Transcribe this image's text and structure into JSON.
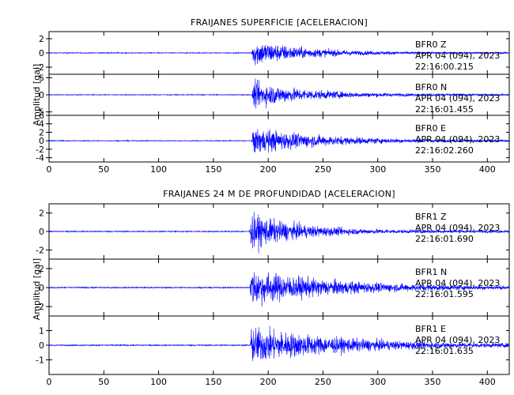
{
  "chart_data": [
    {
      "type": "line",
      "title": "FRAIJANES SUPERFICIE [ACELERACION]",
      "ylabel": "Amplitud [gal]",
      "xlabel": "",
      "xlim": [
        0,
        420
      ],
      "xticks": [
        0,
        50,
        100,
        150,
        200,
        250,
        300,
        350,
        400
      ],
      "colors": {
        "trace": "#0000ff",
        "axis": "#000000"
      },
      "traces": [
        {
          "station": "BFR0",
          "component": "Z",
          "date": "APR 04 (094), 2023",
          "time": "22:16:00.215",
          "ylim": [
            -3,
            3
          ],
          "yticks": [
            -2,
            0,
            2
          ],
          "onset_s": 185,
          "peak_gal": 3.0,
          "decay_s": 45
        },
        {
          "station": "BFR0",
          "component": "N",
          "date": "APR 04 (094), 2023",
          "time": "22:16:01.455",
          "ylim": [
            -6,
            6
          ],
          "yticks": [
            -5,
            0,
            5
          ],
          "onset_s": 185,
          "peak_gal": 6.0,
          "decay_s": 50
        },
        {
          "station": "BFR0",
          "component": "E",
          "date": "APR 04 (094), 2023",
          "time": "22:16:02.260",
          "ylim": [
            -5,
            6
          ],
          "yticks": [
            -4,
            -2,
            0,
            2,
            4,
            6
          ],
          "onset_s": 185,
          "peak_gal": 5.0,
          "decay_s": 60
        }
      ]
    },
    {
      "type": "line",
      "title": "FRAIJANES 24 M DE PROFUNDIDAD [ACELERACION]",
      "ylabel": "Amplitud [gal]",
      "xlabel": "",
      "xlim": [
        0,
        420
      ],
      "xticks": [
        0,
        50,
        100,
        150,
        200,
        250,
        300,
        350,
        400
      ],
      "colors": {
        "trace": "#0000ff",
        "axis": "#000000"
      },
      "traces": [
        {
          "station": "BFR1",
          "component": "Z",
          "date": "APR 04 (094), 2023",
          "time": "22:16:01.690",
          "ylim": [
            -3,
            3
          ],
          "yticks": [
            -2,
            0,
            2
          ],
          "onset_s": 183,
          "peak_gal": 3.0,
          "decay_s": 45
        },
        {
          "station": "BFR1",
          "component": "N",
          "date": "APR 04 (094), 2023",
          "time": "22:16:01.595",
          "ylim": [
            -3,
            3
          ],
          "yticks": [
            -2,
            0,
            2
          ],
          "onset_s": 183,
          "peak_gal": 2.6,
          "decay_s": 75
        },
        {
          "station": "BFR1",
          "component": "E",
          "date": "APR 04 (094), 2023",
          "time": "22:16:01.635",
          "ylim": [
            -2,
            2
          ],
          "yticks": [
            -1,
            0,
            1
          ],
          "onset_s": 183,
          "peak_gal": 1.7,
          "decay_s": 80
        }
      ]
    }
  ]
}
